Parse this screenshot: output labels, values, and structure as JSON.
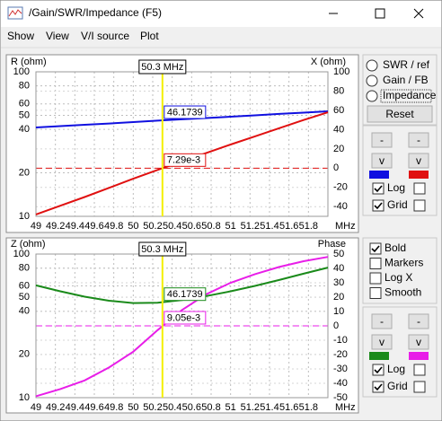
{
  "window": {
    "title": "/Gain/SWR/Impedance (F5)"
  },
  "menu": [
    {
      "label": "Show",
      "enabled": true
    },
    {
      "label": "View",
      "enabled": true
    },
    {
      "label": "V/I source",
      "enabled": false
    },
    {
      "label": "Plot",
      "enabled": true
    }
  ],
  "chart_data": [
    {
      "type": "line",
      "x_unit": "MHz",
      "x": [
        49,
        49.25,
        49.5,
        49.75,
        50,
        50.25,
        50.5,
        50.75,
        51,
        51.25,
        51.5,
        51.75,
        52
      ],
      "xlim": [
        49,
        52
      ],
      "xticks": [
        49,
        49.2,
        49.4,
        49.6,
        49.8,
        50,
        50.2,
        50.4,
        50.6,
        50.8,
        51,
        51.2,
        51.4,
        51.6,
        51.8
      ],
      "ylim": [
        10,
        100
      ],
      "yticks": [
        10,
        20,
        40,
        50,
        60,
        80,
        100
      ],
      "log_y": true,
      "y2lim": [
        -50,
        100
      ],
      "y2ticks": [
        -40,
        -20,
        0,
        20,
        40,
        60,
        80,
        100
      ],
      "grid": true,
      "cursor": {
        "x": 50.3,
        "label": "50.3 MHz"
      },
      "series": [
        {
          "name": "R (ohm)",
          "color": "#1010e0",
          "values": [
            41.2,
            42.1,
            43.0,
            43.9,
            44.9,
            45.9,
            46.9,
            47.9,
            48.9,
            50.0,
            51.1,
            52.2,
            53.3
          ],
          "readout": {
            "value": 46.1739,
            "label": "46.1739"
          }
        },
        {
          "name": "X (ohm)",
          "color": "#e01010",
          "axis": "y2",
          "values": [
            -48,
            -39,
            -30,
            -20.5,
            -11,
            -1.8,
            7,
            15.8,
            24.5,
            33,
            41.5,
            50,
            58
          ],
          "readout": {
            "value": 0.00729,
            "label": "7.29e-3"
          }
        }
      ]
    },
    {
      "type": "line",
      "x_unit": "MHz",
      "x": [
        49,
        49.25,
        49.5,
        49.75,
        50,
        50.25,
        50.5,
        50.75,
        51,
        51.25,
        51.5,
        51.75,
        52
      ],
      "xlim": [
        49,
        52
      ],
      "xticks": [
        49,
        49.2,
        49.4,
        49.6,
        49.8,
        50,
        50.2,
        50.4,
        50.6,
        50.8,
        51,
        51.2,
        51.4,
        51.6,
        51.8
      ],
      "ylim": [
        10,
        100
      ],
      "yticks": [
        10,
        20,
        40,
        50,
        60,
        80,
        100
      ],
      "log_y": true,
      "y2lim": [
        -50,
        50
      ],
      "y2ticks": [
        -50,
        -40,
        -30,
        -20,
        -10,
        0,
        10,
        20,
        30,
        40,
        50
      ],
      "grid": true,
      "cursor": {
        "x": 50.3,
        "label": "50.3 MHz"
      },
      "series": [
        {
          "name": "Z (ohm)",
          "color": "#1a8a1a",
          "values": [
            60.5,
            55,
            50.5,
            47.3,
            45.6,
            45.8,
            47.8,
            51,
            55,
            60,
            66,
            73,
            80.5
          ],
          "readout": {
            "value": 46.1739,
            "label": "46.1739"
          }
        },
        {
          "name": "Phase",
          "color": "#e81ee8",
          "axis": "y2",
          "values": [
            -49,
            -44,
            -38,
            -29,
            -18,
            -3,
            11,
            22,
            30,
            36,
            41,
            45,
            48
          ],
          "readout": {
            "value": 0.00905,
            "label": "9.05e-3"
          }
        }
      ]
    }
  ],
  "controls": {
    "modes": [
      {
        "label": "SWR / ref",
        "selected": false
      },
      {
        "label": "Gain / FB",
        "selected": false
      },
      {
        "label": "Impedance",
        "selected": true
      }
    ],
    "reset": "Reset",
    "top_buttons": [
      "-",
      "-",
      "v",
      "v"
    ],
    "top_checks": [
      {
        "label": "Log",
        "checked": true
      },
      {
        "label": "Grid",
        "checked": true
      }
    ],
    "options": [
      {
        "label": "Bold",
        "checked": true
      },
      {
        "label": "Markers",
        "checked": false
      },
      {
        "label": "Log X",
        "checked": false
      },
      {
        "label": "Smooth",
        "checked": false
      }
    ],
    "bottom_buttons": [
      "-",
      "-",
      "v",
      "v"
    ],
    "bottom_checks": [
      {
        "label": "Log",
        "checked": true
      },
      {
        "label": "Grid",
        "checked": true
      }
    ]
  }
}
